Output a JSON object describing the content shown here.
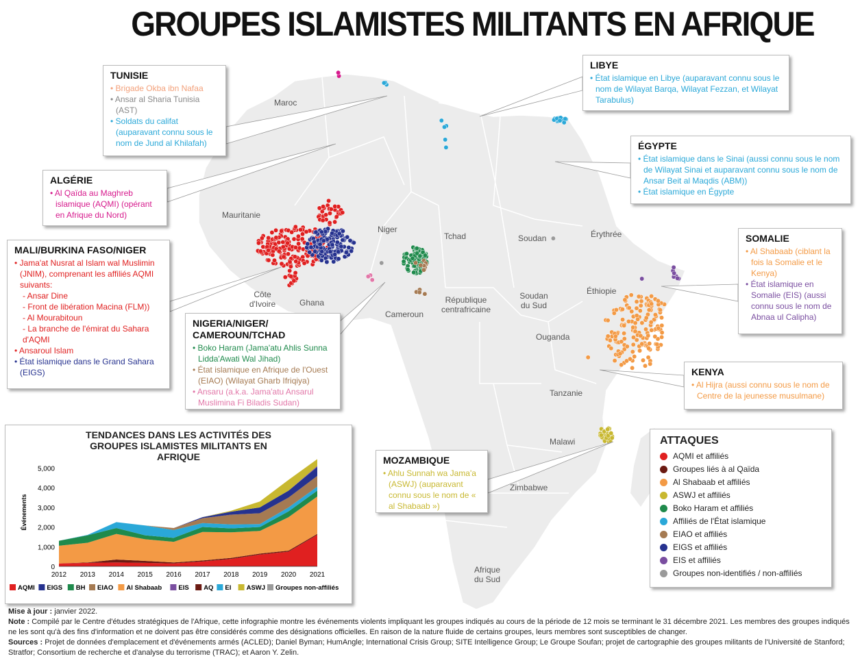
{
  "title": "GROUPES ISLAMISTES MILITANTS EN AFRIQUE",
  "colors": {
    "aqmi": "#e02020",
    "aq": "#6b1a12",
    "shabaab": "#f39a45",
    "aswj": "#c8b830",
    "bh": "#1f8a4c",
    "ei": "#2aa8d8",
    "eiao": "#a57a52",
    "eigs": "#26328f",
    "eis": "#7a4ea0",
    "unaffiliated": "#9a9a9a",
    "ansaru": "#e277a8",
    "aqmi_text": "#d6198c",
    "land": "#ececec",
    "border": "#ffffff"
  },
  "country_labels": {
    "maroc": "Maroc",
    "mauritanie": "Mauritanie",
    "niger": "Niger",
    "tchad": "Tchad",
    "soudan": "Soudan",
    "erythree": "Érythrée",
    "ethiopie": "Éthiopie",
    "soudan_sud": "Soudan du Sud",
    "rca": "République centrafricaine",
    "cameroun": "Cameroun",
    "cote_ivoire": "Côte d'Ivoire",
    "ghana": "Ghana",
    "ouganda": "Ouganda",
    "tanzanie": "Tanzanie",
    "malawi": "Malawi",
    "zimbabwe": "Zimbabwe",
    "afrique_sud": "Afrique du Sud"
  },
  "boxes": {
    "tunisie": {
      "heading": "TUNISIE",
      "items": [
        {
          "text": "Brigade Okba ibn Nafaa",
          "color": "#f3a07a"
        },
        {
          "text": "Ansar al Sharia Tunisia (AST)",
          "color": "#888888"
        },
        {
          "text": "Soldats du califat (auparavant connu sous le nom de Jund al Khilafah)",
          "color": "#2aa8d8"
        }
      ]
    },
    "algerie": {
      "heading": "ALGÉRIE",
      "items": [
        {
          "text": "Al Qaïda au Maghreb islamique (AQMI) (opérant en Afrique du Nord)",
          "color": "#d6198c"
        }
      ]
    },
    "mali": {
      "heading": "MALI/BURKINA FASO/NIGER",
      "items": [
        {
          "text": "Jama'at Nusrat al Islam wal Muslimin (JNIM), comprenant les affiliés AQMI suivants:",
          "color": "#e02020"
        },
        {
          "text": "- Ansar Dine",
          "color": "#e02020",
          "sub": true
        },
        {
          "text": "- Front de libération Macina (FLM))",
          "color": "#e02020",
          "sub": true
        },
        {
          "text": "- Al Mourabitoun",
          "color": "#e02020",
          "sub": true
        },
        {
          "text": "- La branche de l'émirat du Sahara d'AQMI",
          "color": "#e02020",
          "sub": true
        },
        {
          "text": "Ansaroul Islam",
          "color": "#e02020"
        },
        {
          "text": "État islamique dans le Grand Sahara (EIGS)",
          "color": "#26328f"
        }
      ]
    },
    "nigeria": {
      "heading": "NIGERIA/NIGER/ CAMEROUN/TCHAD",
      "items": [
        {
          "text": "Boko Haram (Jama'atu Ahlis Sunna Lidda'Awati Wal Jihad)",
          "color": "#1f8a4c"
        },
        {
          "text": "État islamique en Afrique de l'Ouest (EIAO) (Wilayat Gharb Ifriqiya)",
          "color": "#a57a52"
        },
        {
          "text": "Ansaru (a.k.a. Jama'atu Ansarul Muslimina Fi Biladis Sudan)",
          "color": "#e277a8"
        }
      ]
    },
    "libye": {
      "heading": "LIBYE",
      "items": [
        {
          "text": "État islamique en Libye (auparavant connu sous le nom de Wilayat Barqa, Wilayat Fezzan, et Wilayat Tarabulus)",
          "color": "#2aa8d8"
        }
      ]
    },
    "egypte": {
      "heading": "ÉGYPTE",
      "items": [
        {
          "text": "État islamique dans le Sinai (aussi connu sous le nom de Wilayat Sinai et auparavant connu sous le nom de Ansar Beit al Maqdis (ABM))",
          "color": "#2aa8d8"
        },
        {
          "text": "État islamique en Égypte",
          "color": "#2aa8d8"
        }
      ]
    },
    "somalie": {
      "heading": "SOMALIE",
      "items": [
        {
          "text": "Al Shabaab (ciblant la fois la Somalie et le Kenya)",
          "color": "#f39a45"
        },
        {
          "text": "État islamique en Somalie (EIS) (aussi connu sous le nom de Abnaa ul Calipha)",
          "color": "#7a4ea0"
        }
      ]
    },
    "kenya": {
      "heading": "KENYA",
      "items": [
        {
          "text": "Al Hijra (aussi connu sous le nom de Centre de la jeunesse musulmane)",
          "color": "#f39a45"
        }
      ]
    },
    "mozambique": {
      "heading": "MOZAMBIQUE",
      "items": [
        {
          "text": "Ahlu Sunnah wa Jama'a (ASWJ) (auparavant connu sous le nom de « al Shabaab »)",
          "color": "#c8b830"
        }
      ]
    }
  },
  "legend": {
    "heading": "ATTAQUES",
    "items": [
      {
        "label": "AQMI et affiliés",
        "color": "#e02020"
      },
      {
        "label": "Groupes liés à al Qaïda",
        "color": "#6b1a12"
      },
      {
        "label": "Al Shabaab et affiliés",
        "color": "#f39a45"
      },
      {
        "label": "ASWJ  et affiliés",
        "color": "#c8b830"
      },
      {
        "label": "Boko Haram et affiliés",
        "color": "#1f8a4c"
      },
      {
        "label": "Affiliés de l'État islamique",
        "color": "#2aa8d8"
      },
      {
        "label": "EIAO et affiliés",
        "color": "#a57a52"
      },
      {
        "label": "EIGS et affiliés",
        "color": "#26328f"
      },
      {
        "label": "EIS et affiliés",
        "color": "#7a4ea0"
      },
      {
        "label": "Groupes non-identifiés / non-affiliés",
        "color": "#9a9a9a"
      }
    ]
  },
  "chart_data": {
    "type": "area",
    "title": "TENDANCES DANS LES ACTIVITÉS DES GROUPES ISLAMISTES MILITANTS EN AFRIQUE",
    "ylabel": "Événements",
    "xlabel": "",
    "ylim": [
      0,
      5500
    ],
    "yticks": [
      "0",
      "1,000",
      "2,000",
      "3,000",
      "4,000",
      "5,000"
    ],
    "ytick_values": [
      0,
      1000,
      2000,
      3000,
      4000,
      5000
    ],
    "x": [
      "2012",
      "2013",
      "2014",
      "2015",
      "2016",
      "2017",
      "2018",
      "2019",
      "2020",
      "2021"
    ],
    "stacked": true,
    "series": [
      {
        "name": "AQMI",
        "color": "#e02020",
        "values": [
          150,
          180,
          200,
          180,
          150,
          250,
          380,
          600,
          750,
          1600
        ]
      },
      {
        "name": "AQ",
        "color": "#6b1a12",
        "values": [
          0,
          20,
          150,
          100,
          50,
          50,
          50,
          50,
          50,
          50
        ]
      },
      {
        "name": "Al Shabaab",
        "color": "#f39a45",
        "values": [
          900,
          1000,
          1300,
          1100,
          1050,
          1450,
          1300,
          1150,
          1700,
          1900
        ]
      },
      {
        "name": "BH",
        "color": "#1f8a4c",
        "values": [
          250,
          380,
          300,
          200,
          200,
          250,
          200,
          200,
          300,
          300
        ]
      },
      {
        "name": "EI",
        "color": "#2aa8d8",
        "values": [
          0,
          20,
          300,
          500,
          400,
          200,
          200,
          150,
          200,
          200
        ]
      },
      {
        "name": "EIAO",
        "color": "#a57a52",
        "values": [
          0,
          0,
          0,
          0,
          100,
          250,
          500,
          550,
          500,
          550
        ]
      },
      {
        "name": "EIGS",
        "color": "#26328f",
        "values": [
          0,
          0,
          0,
          0,
          0,
          50,
          150,
          300,
          350,
          450
        ]
      },
      {
        "name": "EIS",
        "color": "#7a4ea0",
        "values": [
          0,
          0,
          0,
          0,
          0,
          0,
          0,
          0,
          0,
          50
        ]
      },
      {
        "name": "ASWJ",
        "color": "#c8b830",
        "values": [
          0,
          0,
          0,
          0,
          0,
          0,
          50,
          300,
          550,
          350
        ]
      },
      {
        "name": "Groupes non-affiliés",
        "color": "#9a9a9a",
        "values": [
          0,
          0,
          0,
          0,
          0,
          0,
          0,
          0,
          0,
          0
        ]
      }
    ],
    "legend_order": [
      "AQMI",
      "EIGS",
      "BH",
      "EIAO",
      "Al Shabaab",
      "EIS",
      "AQ",
      "EI",
      "ASWJ",
      "Groupes non-affiliés"
    ],
    "legend_placement": "bottom"
  },
  "notes": {
    "update_label": "Mise à jour :",
    "update_text": " janvier 2022.",
    "note_label": "Note :",
    "note_text": " Compilé par le Centre d'études stratégiques de l'Afrique, cette infographie montre les événements violents impliquant les groupes indiqués au cours de la période de 12 mois se terminant le 31 décembre 2021. Les membres des groupes indiqués ne les sont qu'à des fins d'information et ne doivent pas être considérés comme des désignations officielles. En raison de la nature fluide de certains groupes, leurs membres sont susceptibles de changer.",
    "sources_label": "Sources :",
    "sources_text": " Projet de données d'emplacement et d'événements armés (ACLED); Daniel Byman; HumAngle; International Crisis Group; SITE Intelligence Group; Le Groupe Soufan; projet de cartographie des groupes militants de l'Université de Stanford; Stratfor; Consortium de recherche et d'analyse du terrorisme (TRAC); et Aaron Y. Zelin."
  }
}
